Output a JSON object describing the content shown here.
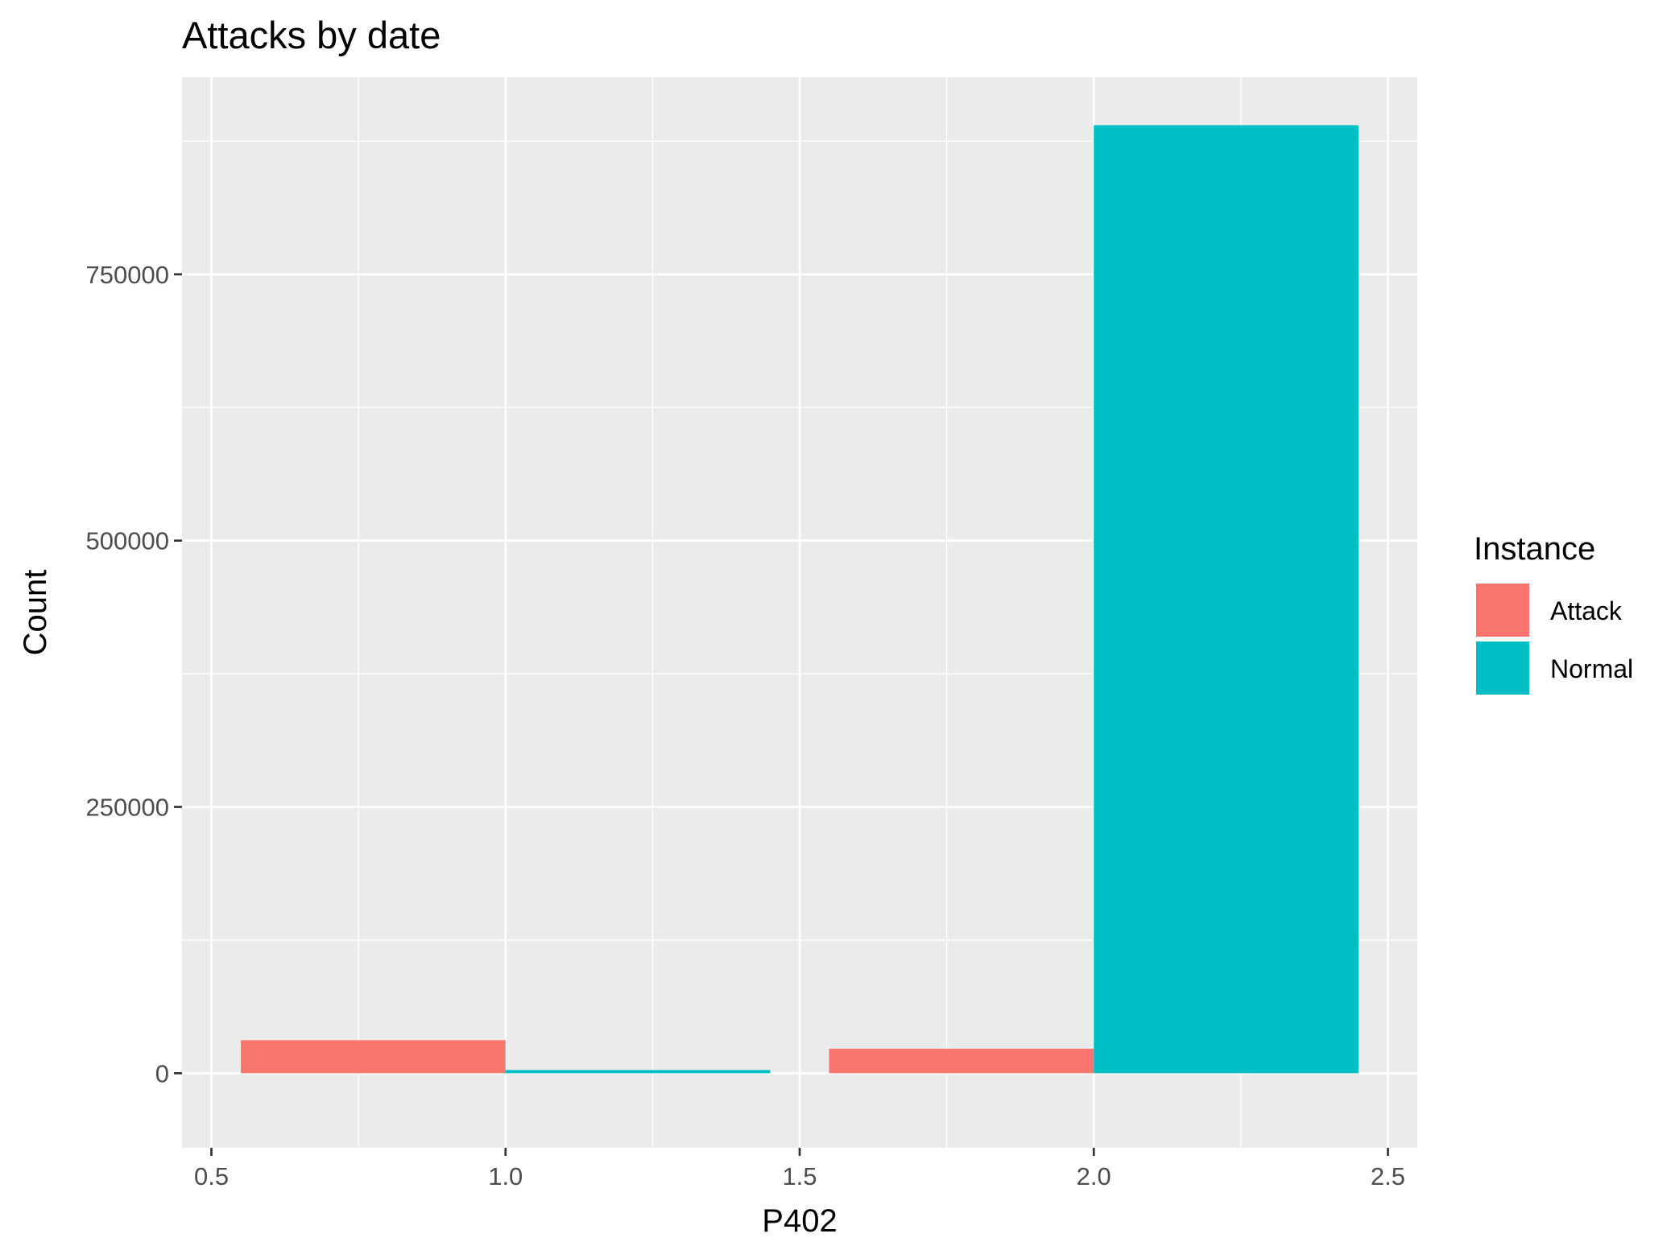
{
  "chart_data": {
    "type": "bar",
    "title": "Attacks by date",
    "xlabel": "P402",
    "ylabel": "Count",
    "xlim": [
      0.45,
      2.55
    ],
    "ylim": [
      -70000,
      935000
    ],
    "x_ticks": [
      0.5,
      1.0,
      1.5,
      2.0,
      2.5
    ],
    "x_tick_labels": [
      "0.5",
      "1.0",
      "1.5",
      "2.0",
      "2.5"
    ],
    "y_ticks": [
      0,
      250000,
      500000,
      750000
    ],
    "y_tick_labels": [
      "0",
      "250000",
      "500000",
      "750000"
    ],
    "grid": true,
    "legend": {
      "title": "Instance",
      "position": "right",
      "entries": [
        {
          "name": "Attack",
          "color": "#F8766D"
        },
        {
          "name": "Normal",
          "color": "#00BFC4"
        }
      ]
    },
    "series": [
      {
        "name": "Attack",
        "color": "#F8766D",
        "bars": [
          {
            "x0": 0.55,
            "x1": 1.0,
            "value": 31000
          },
          {
            "x0": 1.55,
            "x1": 2.0,
            "value": 23000
          }
        ]
      },
      {
        "name": "Normal",
        "color": "#00BFC4",
        "bars": [
          {
            "x0": 1.0,
            "x1": 1.45,
            "value": 3000
          },
          {
            "x0": 2.0,
            "x1": 2.45,
            "value": 890000
          }
        ]
      }
    ]
  }
}
